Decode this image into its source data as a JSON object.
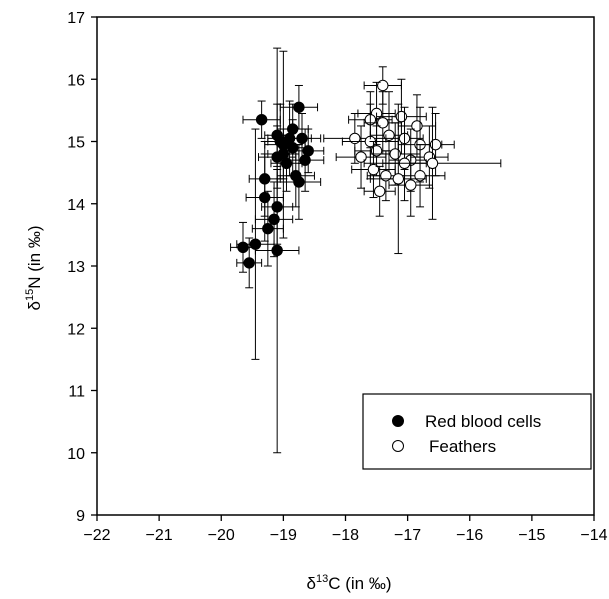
{
  "chart_data": {
    "type": "scatter",
    "xlabel": {
      "base": "δ",
      "sup": "13",
      "rest": "C (in ‰)"
    },
    "ylabel": {
      "base": "δ",
      "sup": "15",
      "rest": "N (in ‰)"
    },
    "xlim": [
      -22,
      -14
    ],
    "ylim": [
      9,
      17
    ],
    "xticks": [
      "−22",
      "−21",
      "−20",
      "−19",
      "−18",
      "−17",
      "−16",
      "−15",
      "−14"
    ],
    "yticks": [
      "9",
      "10",
      "11",
      "12",
      "13",
      "14",
      "15",
      "16",
      "17"
    ],
    "grid": false,
    "legend_position": "bottom-right",
    "series": [
      {
        "name": "Red blood cells",
        "marker": "filled-circle",
        "color": "#000000",
        "points": [
          {
            "x": -19.35,
            "y": 15.35,
            "xerr": 0.3,
            "yerr": 0.3
          },
          {
            "x": -19.1,
            "y": 15.1,
            "xerr": 0.2,
            "yerr": 0.5
          },
          {
            "x": -19.0,
            "y": 14.95,
            "xerr": 0.3,
            "yerr": 1.5
          },
          {
            "x": -18.85,
            "y": 15.2,
            "xerr": 0.25,
            "yerr": 0.4
          },
          {
            "x": -18.75,
            "y": 15.55,
            "xerr": 0.3,
            "yerr": 0.35
          },
          {
            "x": -18.9,
            "y": 15.05,
            "xerr": 0.35,
            "yerr": 0.6
          },
          {
            "x": -19.0,
            "y": 14.8,
            "xerr": 0.25,
            "yerr": 0.4
          },
          {
            "x": -19.1,
            "y": 14.75,
            "xerr": 0.3,
            "yerr": 0.5
          },
          {
            "x": -18.85,
            "y": 14.9,
            "xerr": 0.2,
            "yerr": 0.45
          },
          {
            "x": -18.7,
            "y": 15.05,
            "xerr": 0.3,
            "yerr": 0.4
          },
          {
            "x": -18.6,
            "y": 14.85,
            "xerr": 0.25,
            "yerr": 0.35
          },
          {
            "x": -18.65,
            "y": 14.7,
            "xerr": 0.3,
            "yerr": 0.5
          },
          {
            "x": -18.95,
            "y": 14.65,
            "xerr": 0.25,
            "yerr": 0.45
          },
          {
            "x": -19.05,
            "y": 15.0,
            "xerr": 0.2,
            "yerr": 0.6
          },
          {
            "x": -18.8,
            "y": 14.45,
            "xerr": 0.3,
            "yerr": 0.5
          },
          {
            "x": -18.75,
            "y": 14.35,
            "xerr": 0.35,
            "yerr": 0.6
          },
          {
            "x": -19.3,
            "y": 14.4,
            "xerr": 0.25,
            "yerr": 0.6
          },
          {
            "x": -19.3,
            "y": 14.1,
            "xerr": 0.3,
            "yerr": 0.7
          },
          {
            "x": -19.1,
            "y": 13.95,
            "xerr": 0.25,
            "yerr": 0.6
          },
          {
            "x": -19.15,
            "y": 13.75,
            "xerr": 0.3,
            "yerr": 0.6
          },
          {
            "x": -19.25,
            "y": 13.6,
            "xerr": 0.25,
            "yerr": 0.6
          },
          {
            "x": -19.45,
            "y": 13.35,
            "xerr": 0.3,
            "yerr": 1.85
          },
          {
            "x": -19.65,
            "y": 13.3,
            "xerr": 0.2,
            "yerr": 0.4
          },
          {
            "x": -19.55,
            "y": 13.05,
            "xerr": 0.2,
            "yerr": 0.4
          },
          {
            "x": -19.1,
            "y": 13.25,
            "xerr": 0.35,
            "yerr": 3.25
          }
        ]
      },
      {
        "name": "Feathers",
        "marker": "open-circle",
        "color": "#000000",
        "points": [
          {
            "x": -17.4,
            "y": 15.9,
            "xerr": 0.3,
            "yerr": 0.3
          },
          {
            "x": -17.5,
            "y": 15.45,
            "xerr": 0.3,
            "yerr": 0.5
          },
          {
            "x": -17.6,
            "y": 15.35,
            "xerr": 0.35,
            "yerr": 0.45
          },
          {
            "x": -17.4,
            "y": 15.3,
            "xerr": 0.3,
            "yerr": 0.5
          },
          {
            "x": -17.1,
            "y": 15.4,
            "xerr": 0.4,
            "yerr": 0.6
          },
          {
            "x": -16.85,
            "y": 15.25,
            "xerr": 0.3,
            "yerr": 0.5
          },
          {
            "x": -17.85,
            "y": 15.05,
            "xerr": 0.5,
            "yerr": 0.4
          },
          {
            "x": -17.6,
            "y": 15.0,
            "xerr": 0.45,
            "yerr": 0.6
          },
          {
            "x": -17.3,
            "y": 15.1,
            "xerr": 0.3,
            "yerr": 0.7
          },
          {
            "x": -17.05,
            "y": 15.05,
            "xerr": 0.3,
            "yerr": 0.5
          },
          {
            "x": -16.8,
            "y": 14.95,
            "xerr": 0.35,
            "yerr": 0.6
          },
          {
            "x": -16.55,
            "y": 14.95,
            "xerr": 0.3,
            "yerr": 0.5
          },
          {
            "x": -17.75,
            "y": 14.75,
            "xerr": 0.4,
            "yerr": 0.5
          },
          {
            "x": -17.5,
            "y": 14.85,
            "xerr": 0.35,
            "yerr": 0.4
          },
          {
            "x": -17.2,
            "y": 14.8,
            "xerr": 0.4,
            "yerr": 0.5
          },
          {
            "x": -16.95,
            "y": 14.7,
            "xerr": 0.35,
            "yerr": 0.5
          },
          {
            "x": -16.65,
            "y": 14.75,
            "xerr": 0.3,
            "yerr": 0.5
          },
          {
            "x": -17.55,
            "y": 14.55,
            "xerr": 0.35,
            "yerr": 0.45
          },
          {
            "x": -17.05,
            "y": 14.65,
            "xerr": 0.35,
            "yerr": 0.6
          },
          {
            "x": -16.6,
            "y": 14.65,
            "xerr": 1.1,
            "yerr": 0.9
          },
          {
            "x": -17.35,
            "y": 14.45,
            "xerr": 0.3,
            "yerr": 0.4
          },
          {
            "x": -16.8,
            "y": 14.45,
            "xerr": 0.4,
            "yerr": 0.5
          },
          {
            "x": -17.15,
            "y": 14.4,
            "xerr": 0.45,
            "yerr": 1.2
          },
          {
            "x": -16.95,
            "y": 14.3,
            "xerr": 0.35,
            "yerr": 0.5
          },
          {
            "x": -17.45,
            "y": 14.2,
            "xerr": 0.25,
            "yerr": 0.4
          }
        ]
      }
    ]
  }
}
